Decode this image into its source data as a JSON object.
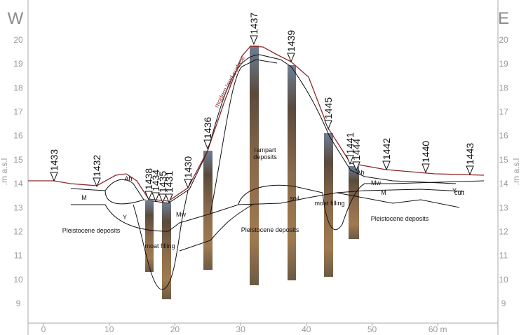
{
  "header": {
    "west": "W",
    "east": "E"
  },
  "axis": {
    "y_label_left": ".m a.s.l",
    "y_label_right": ".m a.s.l",
    "yticks": [
      9,
      10,
      11,
      12,
      13,
      14,
      15,
      16,
      17,
      18,
      19,
      20
    ],
    "xticks": [
      0,
      10,
      20,
      30,
      40,
      50,
      {
        "value": 60,
        "label": "60 m"
      }
    ]
  },
  "surface_label": "modern land surface",
  "boreholes": [
    "1433",
    "1432",
    "1438",
    "1434",
    "1435",
    "1431",
    "1430",
    "1436",
    "1437",
    "1439",
    "1445",
    "1441",
    "1444",
    "1442",
    "1440",
    "1443"
  ],
  "annotations": [
    "Ah",
    "Y",
    "M",
    "Mw",
    "Pleistocene deposits",
    "moat filling",
    "rampart",
    "deposits",
    "soil",
    "moat filling",
    "Pleistocene deposits",
    "Pleistocene deposits",
    "Ah",
    "Mw",
    "M",
    "Y",
    "cult"
  ]
}
